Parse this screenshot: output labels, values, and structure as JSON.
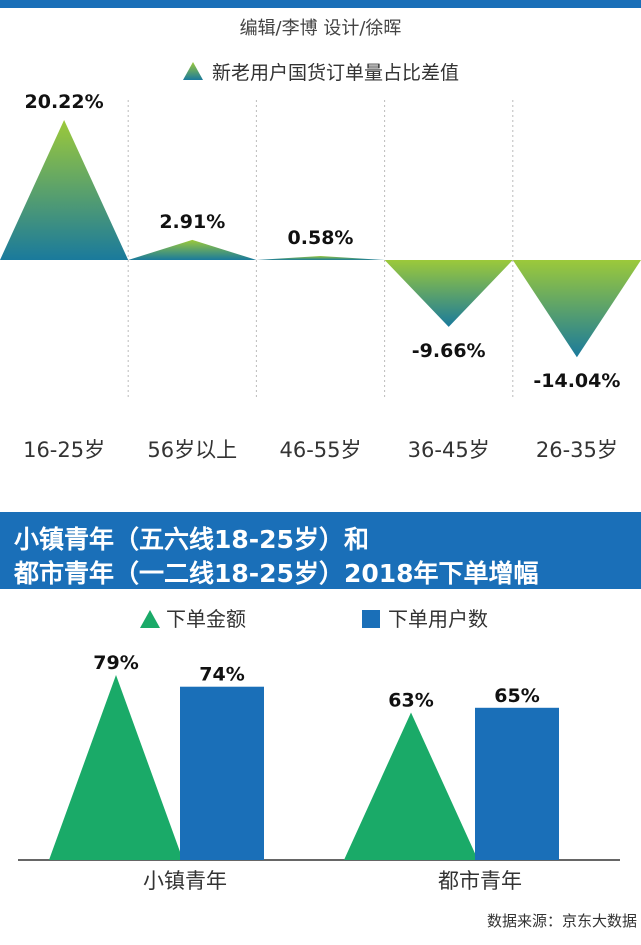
{
  "header": {
    "credits": "编辑/李博  设计/徐晖",
    "accent_color": "#1a6fb8"
  },
  "chart_data": [
    {
      "type": "area",
      "legend": "新老用户国货订单量占比差值",
      "categories": [
        "16-25岁",
        "56岁以上",
        "46-55岁",
        "36-45岁",
        "26-35岁"
      ],
      "values": [
        20.22,
        2.91,
        0.58,
        -9.66,
        -14.04
      ],
      "value_labels": [
        "20.22%",
        "2.91%",
        "0.58%",
        "-9.66%",
        "-14.04%"
      ],
      "ylim": [
        -14.04,
        20.22
      ],
      "grid": "vertical dotted separators",
      "colors": {
        "top": "#9cc93a",
        "bottom": "#1a7a9c"
      }
    },
    {
      "type": "bar",
      "title_lines": [
        "小镇青年（五六线18-25岁）和",
        "都市青年（一二线18-25岁）2018年下单增幅"
      ],
      "categories": [
        "小镇青年",
        "都市青年"
      ],
      "series": [
        {
          "name": "下单金额",
          "values": [
            79,
            63
          ],
          "labels": [
            "79%",
            "63%"
          ],
          "color": "#1aaa68",
          "shape": "triangle"
        },
        {
          "name": "下单用户数",
          "values": [
            74,
            65
          ],
          "labels": [
            "74%",
            "65%"
          ],
          "color": "#1a6fb8",
          "shape": "square"
        }
      ],
      "ylim": [
        0,
        79
      ]
    }
  ],
  "footer": {
    "source": "数据来源：京东大数据"
  }
}
